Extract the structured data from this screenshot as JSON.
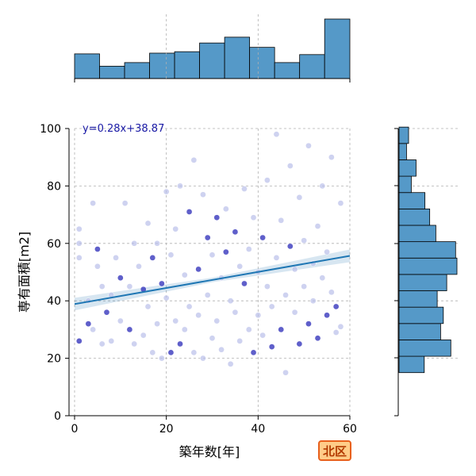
{
  "chart_data": {
    "type": "scatter",
    "xlabel": "築年数[年]",
    "ylabel": "専有面積[m2]",
    "xlim": [
      0,
      60
    ],
    "ylim": [
      0,
      100
    ],
    "x_ticks": [
      "0",
      "20",
      "40",
      "60"
    ],
    "y_ticks": [
      "0",
      "20",
      "40",
      "60",
      "80",
      "100"
    ],
    "grid": true,
    "annotation": "y=0.28x+38.87",
    "badge": "北区",
    "regression": {
      "slope": 0.28,
      "intercept": 38.87
    },
    "colors": {
      "scatter_light": "#b9bfe9",
      "scatter_dark": "#2a2ab8",
      "regression_line": "#1f77b4",
      "bars": "#5599c8",
      "annotation": "#1a1aa6"
    },
    "top_histogram": {
      "bins": [
        0,
        5.45,
        10.9,
        16.35,
        21.8,
        27.25,
        32.7,
        38.15,
        43.6,
        49.05,
        54.5,
        60
      ],
      "counts": [
        34,
        17,
        22,
        35,
        37,
        49,
        57,
        43,
        22,
        33,
        82
      ]
    },
    "right_histogram": {
      "bins": [
        15,
        20.7,
        26.4,
        32.1,
        37.8,
        43.5,
        49.2,
        54.9,
        60.6,
        66.3,
        72,
        77.7,
        83.4,
        89.1,
        94.8,
        100.5
      ],
      "counts": [
        37,
        76,
        61,
        65,
        56,
        70,
        85,
        83,
        54,
        45,
        38,
        18,
        25,
        11,
        14
      ],
      "max_count": 85
    },
    "points": [
      [
        1,
        26
      ],
      [
        1,
        55
      ],
      [
        1,
        60
      ],
      [
        1,
        65
      ],
      [
        3,
        32
      ],
      [
        3,
        40
      ],
      [
        4,
        30
      ],
      [
        4,
        74
      ],
      [
        5,
        58
      ],
      [
        5,
        52
      ],
      [
        6,
        25
      ],
      [
        6,
        45
      ],
      [
        7,
        36
      ],
      [
        8,
        42
      ],
      [
        8,
        26
      ],
      [
        9,
        55
      ],
      [
        10,
        48
      ],
      [
        10,
        33
      ],
      [
        11,
        74
      ],
      [
        12,
        45
      ],
      [
        12,
        30
      ],
      [
        13,
        25
      ],
      [
        13,
        60
      ],
      [
        14,
        52
      ],
      [
        15,
        44
      ],
      [
        15,
        28
      ],
      [
        16,
        67
      ],
      [
        16,
        38
      ],
      [
        17,
        55
      ],
      [
        17,
        22
      ],
      [
        18,
        60
      ],
      [
        18,
        32
      ],
      [
        19,
        46
      ],
      [
        19,
        20
      ],
      [
        20,
        78
      ],
      [
        20,
        41
      ],
      [
        21,
        22
      ],
      [
        21,
        56
      ],
      [
        22,
        33
      ],
      [
        22,
        65
      ],
      [
        23,
        25
      ],
      [
        23,
        80
      ],
      [
        24,
        49
      ],
      [
        24,
        30
      ],
      [
        25,
        71
      ],
      [
        25,
        38
      ],
      [
        26,
        22
      ],
      [
        26,
        89
      ],
      [
        27,
        51
      ],
      [
        27,
        35
      ],
      [
        28,
        20
      ],
      [
        28,
        77
      ],
      [
        29,
        62
      ],
      [
        29,
        42
      ],
      [
        30,
        27
      ],
      [
        30,
        56
      ],
      [
        31,
        69
      ],
      [
        31,
        33
      ],
      [
        32,
        48
      ],
      [
        32,
        23
      ],
      [
        33,
        57
      ],
      [
        33,
        72
      ],
      [
        34,
        40
      ],
      [
        34,
        18
      ],
      [
        35,
        64
      ],
      [
        35,
        36
      ],
      [
        36,
        52
      ],
      [
        36,
        26
      ],
      [
        37,
        46
      ],
      [
        37,
        79
      ],
      [
        38,
        30
      ],
      [
        38,
        58
      ],
      [
        39,
        22
      ],
      [
        39,
        69
      ],
      [
        40,
        50
      ],
      [
        40,
        35
      ],
      [
        41,
        62
      ],
      [
        41,
        28
      ],
      [
        42,
        45
      ],
      [
        42,
        82
      ],
      [
        43,
        24
      ],
      [
        43,
        38
      ],
      [
        44,
        55
      ],
      [
        44,
        98
      ],
      [
        45,
        30
      ],
      [
        45,
        68
      ],
      [
        46,
        42
      ],
      [
        46,
        15
      ],
      [
        47,
        59
      ],
      [
        47,
        87
      ],
      [
        48,
        36
      ],
      [
        48,
        51
      ],
      [
        49,
        25
      ],
      [
        49,
        76
      ],
      [
        50,
        45
      ],
      [
        50,
        61
      ],
      [
        51,
        32
      ],
      [
        51,
        94
      ],
      [
        52,
        53
      ],
      [
        52,
        40
      ],
      [
        53,
        27
      ],
      [
        53,
        66
      ],
      [
        54,
        48
      ],
      [
        54,
        80
      ],
      [
        55,
        35
      ],
      [
        55,
        57
      ],
      [
        56,
        43
      ],
      [
        56,
        90
      ],
      [
        57,
        38
      ],
      [
        57,
        29
      ],
      [
        58,
        31
      ],
      [
        58,
        74
      ]
    ]
  }
}
